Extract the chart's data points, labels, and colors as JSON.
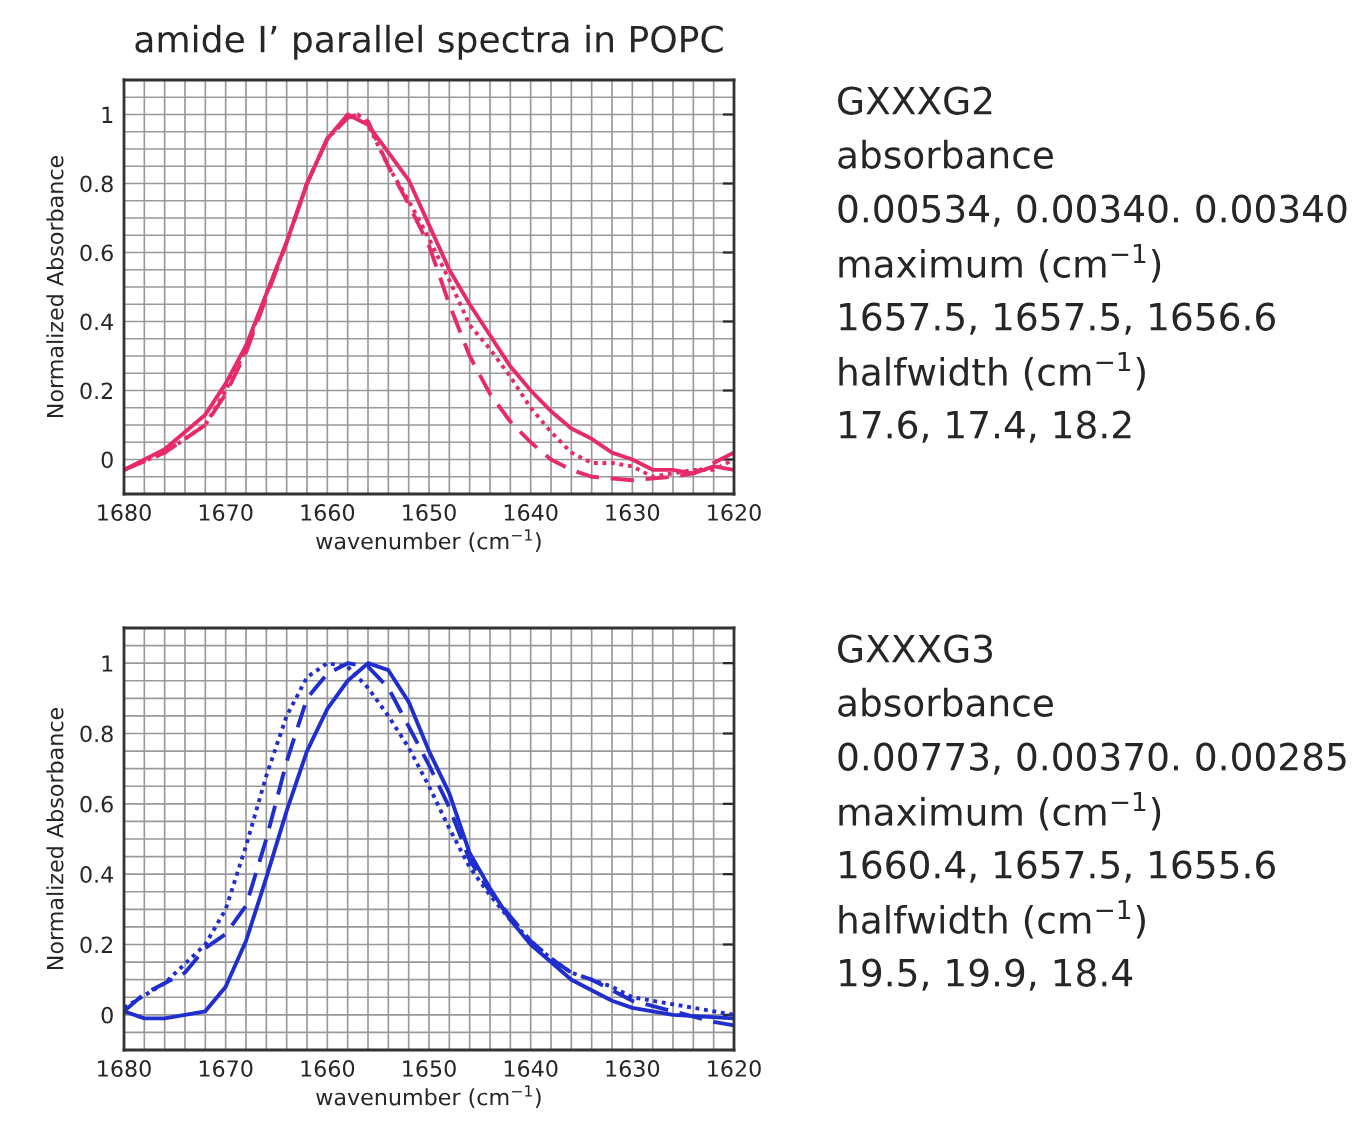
{
  "chart_data": [
    {
      "type": "line",
      "title": "amide I’ parallel spectra in POPC",
      "xlabel": "wavenumber (cm$^{−1}$)",
      "ylabel": "Normalized Absorbance",
      "xlim": [
        1680,
        1620
      ],
      "ylim": [
        -0.1,
        1.1
      ],
      "xticks": [
        1680,
        1670,
        1660,
        1650,
        1640,
        1630,
        1620
      ],
      "yticks": [
        0,
        0.2,
        0.4,
        0.6,
        0.8,
        1
      ],
      "grid": true,
      "legend": false,
      "annotations": [
        "GXXXG2",
        "absorbance",
        "0.00534, 0.00340. 0.00340",
        "maximum (cm$^{−1}$)",
        "1657.5, 1657.5, 1656.6",
        "halfwidth (cm$^{−1}$)",
        "17.6, 17.4, 18.2"
      ],
      "series": [
        {
          "color": "#e62a6a",
          "line_style": "solid",
          "x": [
            1680,
            1676,
            1674,
            1672,
            1670,
            1668,
            1666,
            1664,
            1662,
            1660,
            1658,
            1656,
            1654,
            1652,
            1650,
            1648,
            1646,
            1644,
            1642,
            1640,
            1638,
            1636,
            1634,
            1632,
            1630,
            1628,
            1626,
            1624,
            1622,
            1620
          ],
          "values": [
            -0.03,
            0.03,
            0.08,
            0.13,
            0.22,
            0.33,
            0.48,
            0.63,
            0.8,
            0.93,
            1.0,
            0.97,
            0.89,
            0.81,
            0.68,
            0.55,
            0.45,
            0.36,
            0.27,
            0.2,
            0.14,
            0.09,
            0.06,
            0.02,
            0.0,
            -0.03,
            -0.03,
            -0.04,
            -0.02,
            -0.03
          ]
        },
        {
          "color": "#e62a6a",
          "line_style": "dashed",
          "x": [
            1680,
            1676,
            1672,
            1670,
            1668,
            1666,
            1664,
            1662,
            1660,
            1658,
            1657,
            1656,
            1654,
            1652,
            1650,
            1648,
            1646,
            1644,
            1642,
            1640,
            1638,
            1636,
            1634,
            1630,
            1626,
            1624,
            1622,
            1620
          ],
          "values": [
            -0.03,
            0.02,
            0.1,
            0.19,
            0.31,
            0.47,
            0.63,
            0.8,
            0.93,
            0.99,
            1.0,
            0.98,
            0.85,
            0.74,
            0.62,
            0.45,
            0.3,
            0.19,
            0.11,
            0.05,
            0.0,
            -0.03,
            -0.05,
            -0.06,
            -0.05,
            -0.04,
            -0.01,
            0.02
          ]
        },
        {
          "color": "#e62a6a",
          "line_style": "dotted",
          "x": [
            1680,
            1676,
            1672,
            1670,
            1668,
            1666,
            1664,
            1662,
            1660,
            1658,
            1657,
            1656,
            1654,
            1652,
            1650,
            1648,
            1646,
            1644,
            1642,
            1640,
            1638,
            1636,
            1634,
            1632,
            1630,
            1628,
            1626,
            1624,
            1622,
            1620
          ],
          "values": [
            -0.03,
            0.02,
            0.1,
            0.2,
            0.32,
            0.48,
            0.63,
            0.8,
            0.93,
            0.99,
            1.0,
            0.97,
            0.85,
            0.75,
            0.64,
            0.52,
            0.39,
            0.32,
            0.24,
            0.15,
            0.08,
            0.02,
            -0.01,
            -0.01,
            -0.02,
            -0.05,
            -0.04,
            -0.03,
            -0.03,
            0.0
          ]
        }
      ]
    },
    {
      "type": "line",
      "xlabel": "wavenumber (cm$^{−1}$)",
      "ylabel": "Normalized Absorbance",
      "xlim": [
        1680,
        1620
      ],
      "ylim": [
        -0.1,
        1.1
      ],
      "xticks": [
        1680,
        1670,
        1660,
        1650,
        1640,
        1630,
        1620
      ],
      "yticks": [
        0,
        0.2,
        0.4,
        0.6,
        0.8,
        1
      ],
      "grid": true,
      "legend": false,
      "annotations": [
        "GXXXG3",
        "absorbance",
        "0.00773, 0.00370. 0.00285",
        "maximum (cm$^{−1}$)",
        "1660.4, 1657.5, 1655.6",
        "halfwidth (cm$^{−1}$)",
        "19.5, 19.9, 18.4"
      ],
      "series": [
        {
          "color": "#1f2ecc",
          "line_style": "solid",
          "x": [
            1680,
            1678,
            1676,
            1674,
            1672,
            1670,
            1668,
            1666,
            1664,
            1662,
            1660,
            1658,
            1656,
            1654,
            1652,
            1650,
            1648,
            1646,
            1644,
            1642,
            1640,
            1638,
            1636,
            1634,
            1632,
            1630,
            1626,
            1620
          ],
          "values": [
            0.01,
            -0.01,
            -0.01,
            0.0,
            0.01,
            0.08,
            0.21,
            0.39,
            0.58,
            0.75,
            0.87,
            0.95,
            1.0,
            0.98,
            0.89,
            0.75,
            0.63,
            0.46,
            0.36,
            0.27,
            0.2,
            0.15,
            0.1,
            0.07,
            0.04,
            0.02,
            0.0,
            -0.01
          ]
        },
        {
          "color": "#1f2ecc",
          "line_style": "dashed",
          "x": [
            1680,
            1678,
            1676,
            1674,
            1672,
            1670,
            1668,
            1666,
            1664,
            1662,
            1660,
            1658,
            1656,
            1654,
            1652,
            1650,
            1648,
            1646,
            1644,
            1642,
            1640,
            1638,
            1636,
            1634,
            1632,
            1630,
            1626,
            1622,
            1620
          ],
          "values": [
            0.01,
            0.06,
            0.09,
            0.12,
            0.19,
            0.23,
            0.31,
            0.5,
            0.72,
            0.9,
            0.97,
            1.0,
            0.99,
            0.93,
            0.82,
            0.71,
            0.59,
            0.44,
            0.35,
            0.28,
            0.21,
            0.16,
            0.12,
            0.1,
            0.07,
            0.04,
            0.01,
            -0.02,
            -0.03
          ]
        },
        {
          "color": "#1f2ecc",
          "line_style": "dotted",
          "x": [
            1680,
            1676,
            1672,
            1670,
            1668,
            1666,
            1664,
            1662,
            1660,
            1658,
            1656,
            1654,
            1652,
            1650,
            1648,
            1646,
            1644,
            1642,
            1640,
            1638,
            1636,
            1634,
            1632,
            1630,
            1626,
            1620
          ],
          "values": [
            0.02,
            0.09,
            0.2,
            0.3,
            0.48,
            0.68,
            0.85,
            0.96,
            1.0,
            0.99,
            0.93,
            0.85,
            0.76,
            0.65,
            0.53,
            0.42,
            0.34,
            0.27,
            0.21,
            0.16,
            0.12,
            0.1,
            0.08,
            0.05,
            0.03,
            0.0
          ]
        }
      ]
    }
  ]
}
